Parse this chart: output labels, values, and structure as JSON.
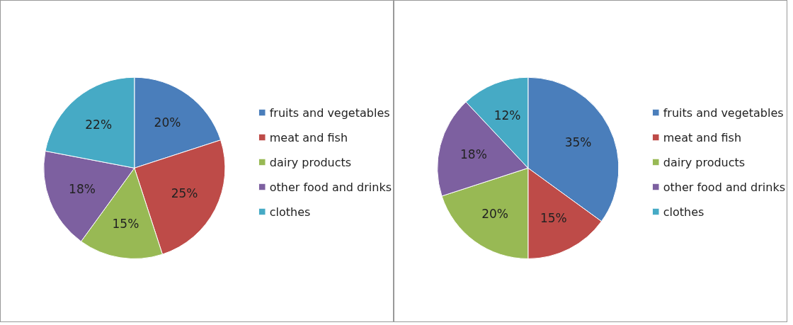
{
  "chart_data": [
    {
      "type": "pie",
      "categories": [
        "fruits and vegetables",
        "meat and fish",
        "dairy products",
        "other food and drinks",
        "clothes"
      ],
      "values": [
        20,
        25,
        15,
        18,
        22
      ],
      "colors": [
        "#4a7ebb",
        "#be4b48",
        "#98b954",
        "#7d60a0",
        "#46aac5"
      ],
      "value_labels": [
        "20%",
        "25%",
        "15%",
        "18%",
        "22%"
      ],
      "legend": "right"
    },
    {
      "type": "pie",
      "categories": [
        "fruits and vegetables",
        "meat and fish",
        "dairy products",
        "other food and drinks",
        "clothes"
      ],
      "values": [
        35,
        15,
        20,
        18,
        12
      ],
      "colors": [
        "#4a7ebb",
        "#be4b48",
        "#98b954",
        "#7d60a0",
        "#46aac5"
      ],
      "value_labels": [
        "35%",
        "15%",
        "20%",
        "18%",
        "12%"
      ],
      "legend": "right"
    }
  ]
}
